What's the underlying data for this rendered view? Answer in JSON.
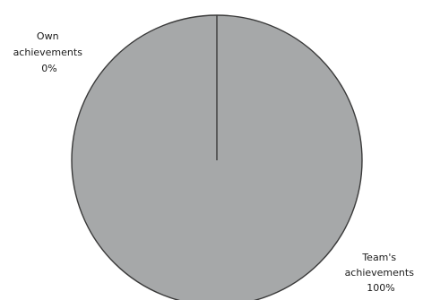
{
  "chart_data": {
    "type": "pie",
    "slices": [
      {
        "label_lines": [
          "Own",
          "achievements"
        ],
        "percent_label": "0%",
        "value": 0
      },
      {
        "label_lines": [
          "Team's",
          "achievements"
        ],
        "percent_label": "100%",
        "value": 100
      }
    ],
    "colors": {
      "fill": "#a6a8a9",
      "stroke": "#3a3a3a"
    },
    "legend": "none",
    "grid": false
  }
}
